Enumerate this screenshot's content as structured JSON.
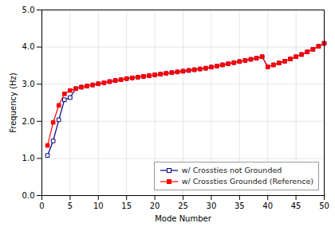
{
  "chart_data": {
    "type": "line",
    "xlabel": "Mode Number",
    "ylabel": "Frequency (Hz)",
    "xlim": [
      0,
      50
    ],
    "ylim": [
      0.0,
      5.0
    ],
    "xticks": [
      0,
      5,
      10,
      15,
      20,
      25,
      30,
      35,
      40,
      45,
      50
    ],
    "yticks": [
      {
        "value": 0.0,
        "label": "0.0"
      },
      {
        "value": 1.0,
        "label": "1.0"
      },
      {
        "value": 2.0,
        "label": "2.0"
      },
      {
        "value": 3.0,
        "label": "3.0"
      },
      {
        "value": 4.0,
        "label": "4.0"
      },
      {
        "value": 5.0,
        "label": "5.0"
      }
    ],
    "grid": true,
    "legend": "lower right",
    "x": [
      1,
      2,
      3,
      4,
      5,
      6,
      7,
      8,
      9,
      10,
      11,
      12,
      13,
      14,
      15,
      16,
      17,
      18,
      19,
      20,
      21,
      22,
      23,
      24,
      25,
      26,
      27,
      28,
      29,
      30,
      31,
      32,
      33,
      34,
      35,
      36,
      37,
      38,
      39,
      40,
      41,
      42,
      43,
      44,
      45,
      46,
      47,
      48,
      49,
      50
    ],
    "series": [
      {
        "name": "w/ Crossties not Grounded",
        "color": "#000080",
        "marker": "square-open",
        "line_style": "solid",
        "values": [
          1.08,
          1.47,
          2.04,
          2.58,
          2.64,
          2.88,
          2.92,
          2.95,
          2.98,
          3.01,
          3.04,
          3.07,
          3.1,
          3.12,
          3.15,
          3.17,
          3.19,
          3.21,
          3.23,
          3.25,
          3.27,
          3.29,
          3.31,
          3.33,
          3.35,
          3.37,
          3.39,
          3.41,
          3.43,
          3.46,
          3.49,
          3.52,
          3.55,
          3.58,
          3.61,
          3.64,
          3.67,
          3.7,
          3.74,
          3.47,
          3.52,
          3.57,
          3.62,
          3.68,
          3.74,
          3.8,
          3.87,
          3.94,
          4.02,
          4.1
        ]
      },
      {
        "name": "w/ Crossties Grounded (Reference)",
        "color": "#FF0000",
        "marker": "square",
        "line_style": "solid",
        "values": [
          1.35,
          1.97,
          2.43,
          2.74,
          2.83,
          2.88,
          2.92,
          2.95,
          2.98,
          3.01,
          3.04,
          3.07,
          3.1,
          3.12,
          3.15,
          3.17,
          3.19,
          3.21,
          3.23,
          3.25,
          3.27,
          3.29,
          3.31,
          3.33,
          3.35,
          3.37,
          3.39,
          3.41,
          3.43,
          3.46,
          3.49,
          3.52,
          3.55,
          3.58,
          3.61,
          3.64,
          3.67,
          3.7,
          3.74,
          3.47,
          3.52,
          3.57,
          3.62,
          3.68,
          3.74,
          3.8,
          3.87,
          3.94,
          4.02,
          4.1
        ]
      }
    ]
  }
}
